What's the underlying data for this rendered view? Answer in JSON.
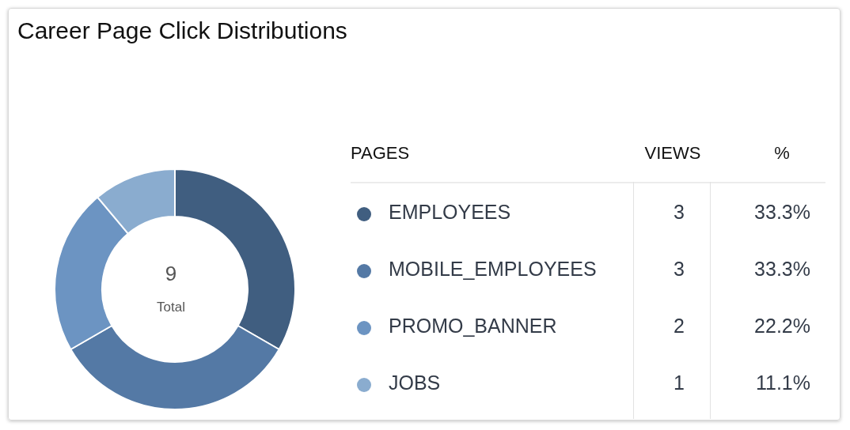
{
  "chart_data": {
    "type": "donut",
    "title": "Career Page Click Distributions",
    "categories": [
      "EMPLOYEES",
      "MOBILE_EMPLOYEES",
      "PROMO_BANNER",
      "JOBS"
    ],
    "values": [
      33.3,
      33.3,
      22.2,
      11.1
    ],
    "colors": [
      "#405e80",
      "#5479a5",
      "#6c94c2",
      "#8aaccf"
    ],
    "value_labels": [
      "33.3%",
      "33.3%",
      "22.2%",
      "11.1%"
    ],
    "legend": "right",
    "legend_title": "PAGES",
    "annotations": [
      "VIEWS",
      "%",
      "9",
      "Total",
      {
        "text": "3",
        "x": "EMPLOYEES"
      },
      {
        "text": "3",
        "x": "MOBILE_EMPLOYEES"
      },
      {
        "text": "2",
        "x": "PROMO_BANNER"
      },
      {
        "text": "1",
        "x": "JOBS"
      }
    ]
  }
}
